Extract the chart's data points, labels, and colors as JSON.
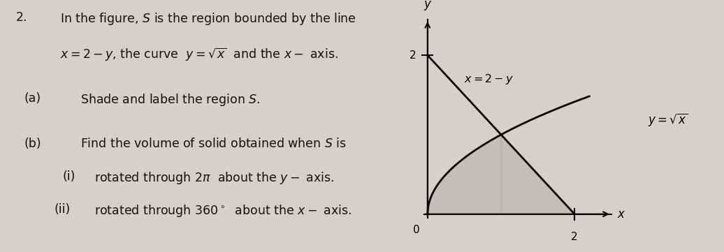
{
  "background_color": "#d5d0cb",
  "text_color": "#111111",
  "fig_width": 10.36,
  "fig_height": 3.61,
  "left_panel": {
    "question_number": "2.",
    "line1": "In the figure, $S$ is the region bounded by the line",
    "line2": "$x = 2-y$, the curve  $y = \\sqrt{x}$  and the $x-$ axis.",
    "part_a_label": "(a)",
    "part_a_text": "Shade and label the region $S$.",
    "part_b_label": "(b)",
    "part_b_text": "Find the volume of solid obtained when $S$ is",
    "part_bi_label": "(i)",
    "part_bi_text": "rotated through $2\\pi$  about the $y-$ axis.",
    "part_bii_label": "(ii)",
    "part_bii_text": "rotated through $360^\\circ$  about the $x - $ axis."
  },
  "right_panel": {
    "xlim": [
      -0.35,
      2.9
    ],
    "ylim": [
      -0.35,
      2.6
    ],
    "shade_color": "#aaaaaa",
    "shade_alpha": 0.45,
    "label_line": "$x = 2-y$",
    "label_curve": "$y = \\sqrt{x}$",
    "label_x": "$x$",
    "label_y": "$y$",
    "label_origin": "0",
    "label_2x": "2",
    "label_2y": "2"
  }
}
